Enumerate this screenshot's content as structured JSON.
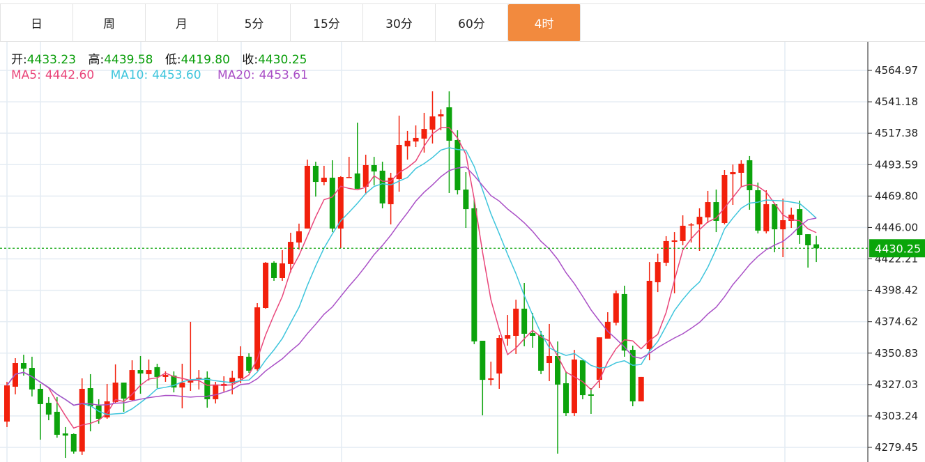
{
  "tabs": [
    {
      "label": "日",
      "active": false
    },
    {
      "label": "周",
      "active": false
    },
    {
      "label": "月",
      "active": false
    },
    {
      "label": "5分",
      "active": false
    },
    {
      "label": "15分",
      "active": false
    },
    {
      "label": "30分",
      "active": false
    },
    {
      "label": "60分",
      "active": false
    },
    {
      "label": "4时",
      "active": true
    }
  ],
  "info": {
    "open_label": "开:",
    "open": "4433.23",
    "high_label": "高:",
    "high": "4439.58",
    "low_label": "低:",
    "low": "4419.80",
    "close_label": "收:",
    "close": "4430.25",
    "ma5_label": "MA5:",
    "ma5": "4442.60",
    "ma10_label": "MA10:",
    "ma10": "4453.60",
    "ma20_label": "MA20:",
    "ma20": "4453.61"
  },
  "colors": {
    "up": "#f2200c",
    "down": "#0ca30c",
    "ma5": "#e9467a",
    "ma10": "#3ec5dc",
    "ma20": "#a94fc6",
    "accent": "#f28a3e",
    "last_price": "#0aa50a"
  },
  "chart_data": {
    "type": "candlestick",
    "ylim": [
      4270,
      4580
    ],
    "y_ticks": [
      "4564.97",
      "4541.18",
      "4517.38",
      "4493.59",
      "4469.80",
      "4446.00",
      "4422.21",
      "4398.42",
      "4374.62",
      "4350.83",
      "4327.03",
      "4303.24",
      "4279.45"
    ],
    "last_price": "4430.25",
    "grid": true,
    "ma_periods": [
      5,
      10,
      20
    ],
    "ohlc": [
      [
        4299.0,
        4329.1,
        4294.8,
        4326.4
      ],
      [
        4325.4,
        4347.0,
        4319.6,
        4343.3
      ],
      [
        4343.3,
        4349.6,
        4333.8,
        4339.1
      ],
      [
        4339.6,
        4348.1,
        4318.0,
        4323.3
      ],
      [
        4323.8,
        4327.5,
        4285.3,
        4312.2
      ],
      [
        4313.2,
        4317.5,
        4300.0,
        4304.3
      ],
      [
        4306.4,
        4317.5,
        4286.8,
        4289.0
      ],
      [
        4290.0,
        4294.8,
        4271.5,
        4288.4
      ],
      [
        4289.5,
        4290.0,
        4274.7,
        4276.3
      ],
      [
        4276.3,
        4331.7,
        4273.7,
        4323.8
      ],
      [
        4324.3,
        4334.9,
        4291.6,
        4310.6
      ],
      [
        4311.1,
        4315.9,
        4297.4,
        4301.1
      ],
      [
        4302.1,
        4327.5,
        4301.1,
        4314.3
      ],
      [
        4313.8,
        4342.3,
        4312.7,
        4328.5
      ],
      [
        4328.5,
        4328.5,
        4306.4,
        4316.4
      ],
      [
        4315.3,
        4345.4,
        4314.3,
        4338.0
      ],
      [
        4338.0,
        4348.6,
        4320.1,
        4335.4
      ],
      [
        4334.9,
        4346.0,
        4330.1,
        4338.0
      ],
      [
        4340.2,
        4342.8,
        4324.3,
        4332.8
      ],
      [
        4332.8,
        4337.0,
        4329.1,
        4334.3
      ],
      [
        4333.8,
        4337.0,
        4321.1,
        4324.8
      ],
      [
        4324.8,
        4342.8,
        4309.0,
        4328.5
      ],
      [
        4328.5,
        4374.5,
        4322.2,
        4330.6
      ],
      [
        4331.2,
        4338.0,
        4323.3,
        4332.2
      ],
      [
        4332.2,
        4337.0,
        4309.5,
        4315.9
      ],
      [
        4315.9,
        4329.1,
        4312.7,
        4326.4
      ],
      [
        4325.9,
        4333.3,
        4321.7,
        4327.5
      ],
      [
        4328.0,
        4337.5,
        4319.6,
        4332.2
      ],
      [
        4331.7,
        4356.0,
        4328.0,
        4348.6
      ],
      [
        4348.1,
        4350.7,
        4335.9,
        4337.5
      ],
      [
        4338.6,
        4388.7,
        4337.5,
        4385.5
      ],
      [
        4385.0,
        4419.8,
        4384.5,
        4419.3
      ],
      [
        4419.3,
        4420.4,
        4405.6,
        4407.7
      ],
      [
        4407.7,
        4428.8,
        4405.6,
        4418.8
      ],
      [
        4418.3,
        4442.0,
        4411.9,
        4435.1
      ],
      [
        4434.6,
        4448.9,
        4429.3,
        4443.1
      ],
      [
        4445.2,
        4497.4,
        4445.2,
        4492.7
      ],
      [
        4492.7,
        4495.8,
        4469.4,
        4480.5
      ],
      [
        4480.5,
        4492.7,
        4477.9,
        4483.7
      ],
      [
        4483.7,
        4496.9,
        4442.5,
        4445.2
      ],
      [
        4445.2,
        4484.8,
        4430.4,
        4484.2
      ],
      [
        4483.7,
        4499.5,
        4483.7,
        4484.2
      ],
      [
        4486.9,
        4525.4,
        4475.3,
        4475.3
      ],
      [
        4476.8,
        4501.1,
        4471.0,
        4493.2
      ],
      [
        4493.2,
        4499.5,
        4477.9,
        4488.4
      ],
      [
        4489.0,
        4495.8,
        4460.5,
        4464.2
      ],
      [
        4463.6,
        4487.4,
        4448.3,
        4483.7
      ],
      [
        4482.6,
        4530.7,
        4473.1,
        4508.5
      ],
      [
        4507.4,
        4519.1,
        4497.4,
        4511.7
      ],
      [
        4511.1,
        4523.3,
        4506.9,
        4513.8
      ],
      [
        4513.3,
        4532.8,
        4502.7,
        4520.6
      ],
      [
        4520.1,
        4549.1,
        4509.6,
        4530.1
      ],
      [
        4530.1,
        4535.4,
        4519.6,
        4531.7
      ],
      [
        4537.0,
        4549.1,
        4472.1,
        4511.7
      ],
      [
        4512.2,
        4519.6,
        4471.0,
        4474.2
      ],
      [
        4474.7,
        4487.9,
        4445.7,
        4459.9
      ],
      [
        4460.5,
        4467.3,
        4357.6,
        4359.7
      ],
      [
        4360.2,
        4360.2,
        4303.7,
        4330.6
      ],
      [
        4330.6,
        4344.4,
        4326.4,
        4331.7
      ],
      [
        4335.4,
        4364.4,
        4323.8,
        4362.3
      ],
      [
        4361.8,
        4379.7,
        4356.5,
        4364.4
      ],
      [
        4363.9,
        4391.3,
        4350.2,
        4384.5
      ],
      [
        4384.5,
        4404.0,
        4356.0,
        4365.5
      ],
      [
        4366.0,
        4381.3,
        4354.9,
        4363.9
      ],
      [
        4364.4,
        4367.6,
        4334.9,
        4337.5
      ],
      [
        4343.3,
        4372.9,
        4329.6,
        4348.6
      ],
      [
        4348.6,
        4359.7,
        4274.7,
        4327.0
      ],
      [
        4328.0,
        4337.0,
        4303.2,
        4305.3
      ],
      [
        4305.3,
        4353.3,
        4303.2,
        4346.0
      ],
      [
        4345.4,
        4345.4,
        4315.9,
        4319.0
      ],
      [
        4319.6,
        4324.3,
        4304.8,
        4318.5
      ],
      [
        4330.6,
        4362.8,
        4324.3,
        4362.8
      ],
      [
        4361.8,
        4381.8,
        4361.8,
        4374.5
      ],
      [
        4373.9,
        4398.2,
        4371.8,
        4396.1
      ],
      [
        4395.6,
        4401.9,
        4348.1,
        4352.8
      ],
      [
        4353.3,
        4356.5,
        4310.6,
        4314.3
      ],
      [
        4314.3,
        4332.8,
        4314.3,
        4332.8
      ],
      [
        4353.9,
        4419.8,
        4345.4,
        4405.6
      ],
      [
        4404.5,
        4426.2,
        4397.1,
        4419.8
      ],
      [
        4419.3,
        4439.4,
        4416.7,
        4435.7
      ],
      [
        4435.1,
        4442.5,
        4396.1,
        4436.2
      ],
      [
        4435.7,
        4455.2,
        4432.5,
        4447.3
      ],
      [
        4447.8,
        4449.4,
        4434.6,
        4448.3
      ],
      [
        4448.3,
        4460.5,
        4428.3,
        4454.1
      ],
      [
        4453.6,
        4473.7,
        4449.4,
        4465.2
      ],
      [
        4465.2,
        4474.7,
        4442.5,
        4451.0
      ],
      [
        4449.4,
        4489.5,
        4448.3,
        4485.8
      ],
      [
        4486.3,
        4493.7,
        4463.1,
        4487.9
      ],
      [
        4487.4,
        4496.9,
        4476.3,
        4494.3
      ],
      [
        4496.9,
        4500.1,
        4459.4,
        4474.2
      ],
      [
        4474.2,
        4480.0,
        4441.5,
        4443.6
      ],
      [
        4443.1,
        4474.2,
        4441.5,
        4463.6
      ],
      [
        4463.6,
        4463.6,
        4427.2,
        4444.6
      ],
      [
        4444.6,
        4467.9,
        4423.5,
        4451.5
      ],
      [
        4451.0,
        4461.0,
        4445.7,
        4455.7
      ],
      [
        4459.9,
        4466.3,
        4433.6,
        4440.4
      ],
      [
        4440.9,
        4440.9,
        4415.6,
        4432.5
      ],
      [
        4433.23,
        4439.58,
        4419.8,
        4430.25
      ]
    ]
  }
}
